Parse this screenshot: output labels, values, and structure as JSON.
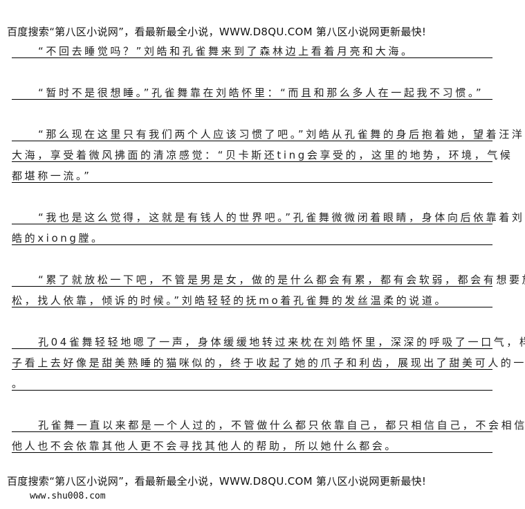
{
  "header_banner": "百度搜索“第八区小说网”，看最新最全小说，WWW.D8QU.COM   第八区小说网更新最快!",
  "lines": [
    {
      "text": "“不回去睡觉吗？”刘皓和孔雀舞来到了森林边上看着月亮和大海。",
      "indent": true
    },
    {
      "text": "“暂时不是很想睡。”孔雀舞靠在刘皓怀里：“而且和那么多人在一起我不习惯。”",
      "indent": true
    },
    {
      "text": "“那么现在这里只有我们两个人应该习惯了吧。”刘皓从孔雀舞的身后抱着她，望着汪洋",
      "indent": true
    },
    {
      "text": "大海，享受着微风拂面的清凉感觉：“贝卡斯还ting会享受的，这里的地势，环境，气候",
      "indent": false
    },
    {
      "text": "都堪称一流。”",
      "indent": false
    },
    {
      "text": "“我也是这么觉得，这就是有钱人的世界吧。”孔雀舞微微闭着眼睛，身体向后依靠着刘",
      "indent": true
    },
    {
      "text": "皓的xiong膛。",
      "indent": false
    },
    {
      "text": "“累了就放松一下吧，不管是男是女，做的是什么都会有累，都有会软弱，都会有想要放",
      "indent": true
    },
    {
      "text": "松，找人依靠，倾诉的时候。”刘皓轻轻的抚mo着孔雀舞的发丝温柔的说道。",
      "indent": false
    },
    {
      "text": "孔04雀舞轻轻地嗯了一声，身体缓缓地转过来枕在刘皓怀里，深深的呼吸了一口气，样",
      "indent": true
    },
    {
      "text": "子看上去好像是甜美熟睡的猫咪似的，终于收起了她的爪子和利齿，展现出了甜美可人的一面",
      "indent": false
    },
    {
      "text": "。",
      "indent": false
    },
    {
      "text": "孔雀舞一直以来都是一个人过的，不管做什么都只依靠自己，都只相信自己，不会相信其",
      "indent": true
    },
    {
      "text": "他人也不会依靠其他人更不会寻找其他人的帮助，所以她什么都会。",
      "indent": false
    }
  ],
  "footer_banner": "百度搜索“第八区小说网”，看最新最全小说，WWW.D8QU.COM   第八区小说网更新最快!",
  "footer_url": "www.shu008.com"
}
